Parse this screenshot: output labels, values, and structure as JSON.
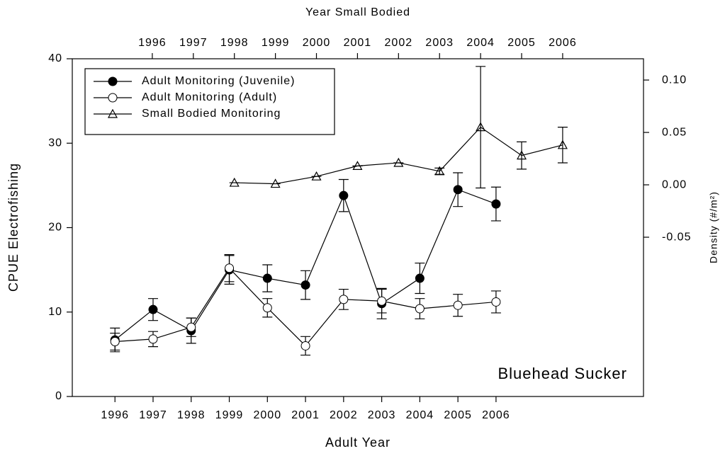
{
  "chart_data": {
    "type": "line",
    "x_label": "Adult Year",
    "x2_label": "Year Small Bodied",
    "y_label": "CPUE Electrofishing",
    "y2_label": "Density (#/m²)",
    "annotation": "Bluehead Sucker",
    "xlim": [
      1994.88,
      2009.87
    ],
    "xticks": [
      1996,
      1997,
      1998,
      1999,
      2000,
      2001,
      2002,
      2003,
      2004,
      2005,
      2006
    ],
    "x2lim": [
      1994.05,
      2007.97
    ],
    "x2ticks": [
      1996,
      1997,
      1998,
      1999,
      2000,
      2001,
      2002,
      2003,
      2004,
      2005,
      2006
    ],
    "ylim": [
      0,
      40
    ],
    "yticks": [
      0,
      10,
      20,
      30,
      40
    ],
    "y2lim": [
      -0.202,
      0.1203
    ],
    "y2ticks": [
      {
        "value": 0.1,
        "label": "0.10"
      },
      0.05,
      {
        "value": 0,
        "label": "0.00"
      },
      -0.05
    ],
    "legend": "upper left",
    "series": [
      {
        "name": "Adult Monitoring (Juvenile)",
        "color": "#000000",
        "marker": "filled-circle",
        "x": [
          1996,
          1997,
          1998,
          1999,
          2000,
          2001,
          2002,
          2003,
          2004,
          2005,
          2006
        ],
        "values": [
          6.7,
          10.3,
          7.8,
          15.0,
          14.0,
          13.2,
          23.8,
          11.0,
          14.0,
          24.5,
          22.8
        ],
        "errors": [
          1.4,
          1.3,
          1.5,
          1.7,
          1.6,
          1.7,
          1.9,
          1.8,
          1.8,
          2.0,
          2.0
        ]
      },
      {
        "name": "Adult Monitoring (Adult)",
        "color": "#000000",
        "marker": "open-circle",
        "x": [
          1996,
          1997,
          1998,
          1999,
          2000,
          2001,
          2002,
          2003,
          2004,
          2005,
          2006
        ],
        "values": [
          6.5,
          6.8,
          8.2,
          15.2,
          10.5,
          6.0,
          11.5,
          11.3,
          10.4,
          10.8,
          11.2
        ],
        "errors": [
          1.0,
          0.9,
          1.1,
          1.6,
          1.1,
          1.1,
          1.2,
          1.4,
          1.2,
          1.3,
          1.3
        ]
      },
      {
        "name": "Small Bodied Monitoring",
        "color": "#000000",
        "marker": "triangle",
        "axis": "y2",
        "xaxis": "x2",
        "x": [
          1998,
          1999,
          2000,
          2001,
          2002,
          2003,
          2004,
          2005,
          2006
        ],
        "values": [
          0.002,
          0.001,
          0.008,
          0.018,
          0.021,
          0.013,
          0.055,
          0.028,
          0.038
        ],
        "errors": [
          0.0,
          0.0,
          0.0,
          0.0,
          0.0,
          0.003,
          0.058,
          0.013,
          0.017
        ]
      }
    ]
  }
}
